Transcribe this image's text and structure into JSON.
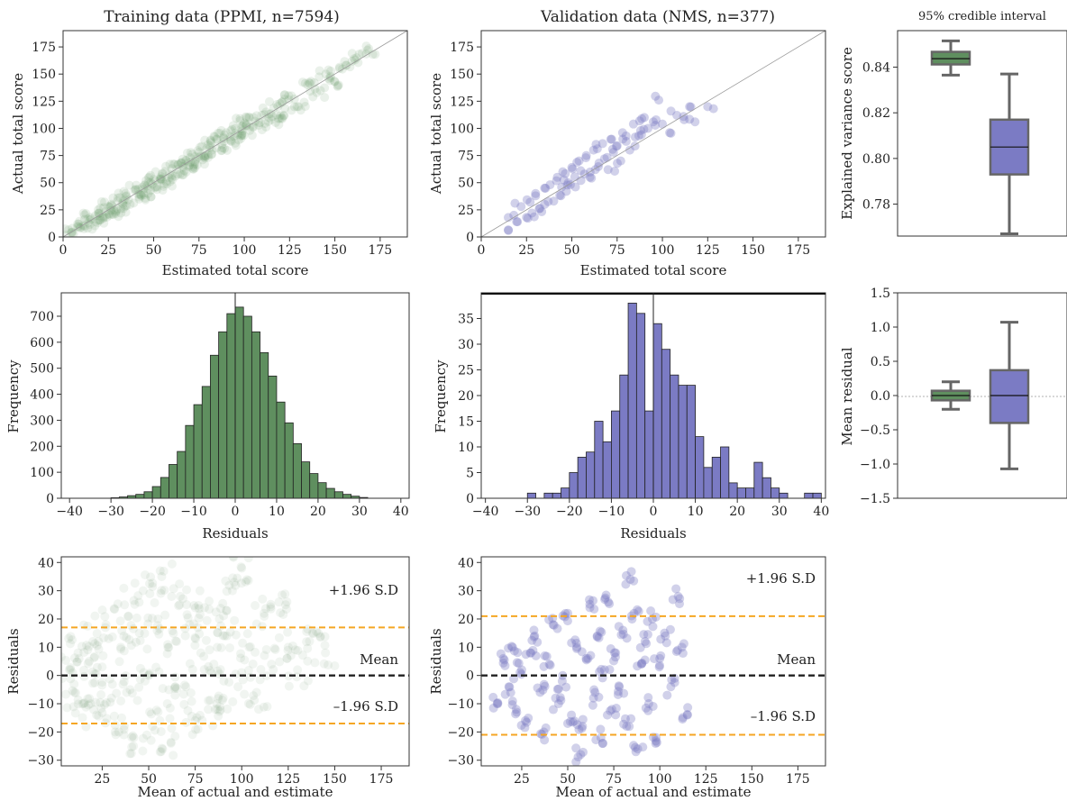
{
  "colors": {
    "train": "#5f8f5f",
    "valid": "#7b7bc4",
    "sd_line": "#f5a623",
    "mean_line": "#222222"
  },
  "chart_data": [
    {
      "id": "train-scatter",
      "type": "scatter",
      "title": "Training data (PPMI, n=7594)",
      "xlabel": "Estimated total score",
      "ylabel": "Actual total score",
      "xlim": [
        0,
        190
      ],
      "ylim": [
        0,
        190
      ],
      "xticks": [
        0,
        25,
        50,
        75,
        100,
        125,
        150,
        175
      ],
      "yticks": [
        0,
        25,
        50,
        75,
        100,
        125,
        150,
        175
      ],
      "reference_line": "identity y = x",
      "points": [
        [
          5,
          4
        ],
        [
          8,
          12
        ],
        [
          12,
          10
        ],
        [
          15,
          18
        ],
        [
          18,
          14
        ],
        [
          20,
          22
        ],
        [
          22,
          17
        ],
        [
          25,
          28
        ],
        [
          27,
          21
        ],
        [
          30,
          33
        ],
        [
          32,
          26
        ],
        [
          35,
          38
        ],
        [
          37,
          30
        ],
        [
          40,
          44
        ],
        [
          42,
          35
        ],
        [
          45,
          48
        ],
        [
          47,
          40
        ],
        [
          50,
          53
        ],
        [
          52,
          46
        ],
        [
          55,
          58
        ],
        [
          57,
          51
        ],
        [
          60,
          63
        ],
        [
          62,
          56
        ],
        [
          65,
          68
        ],
        [
          67,
          61
        ],
        [
          70,
          73
        ],
        [
          72,
          66
        ],
        [
          75,
          78
        ],
        [
          77,
          71
        ],
        [
          80,
          85
        ],
        [
          82,
          76
        ],
        [
          85,
          90
        ],
        [
          88,
          82
        ],
        [
          90,
          96
        ],
        [
          93,
          88
        ],
        [
          95,
          100
        ],
        [
          98,
          93
        ],
        [
          100,
          105
        ],
        [
          103,
          98
        ],
        [
          105,
          110
        ],
        [
          108,
          103
        ],
        [
          112,
          115
        ],
        [
          115,
          108
        ],
        [
          118,
          122
        ],
        [
          122,
          112
        ],
        [
          126,
          130
        ],
        [
          130,
          120
        ],
        [
          135,
          140
        ],
        [
          140,
          133
        ],
        [
          145,
          150
        ],
        [
          150,
          143
        ],
        [
          156,
          158
        ],
        [
          162,
          165
        ],
        [
          168,
          172
        ]
      ]
    },
    {
      "id": "valid-scatter",
      "type": "scatter",
      "title": "Validation data (NMS, n=377)",
      "xlabel": "Estimated total score",
      "ylabel": "Actual total score",
      "xlim": [
        0,
        190
      ],
      "ylim": [
        0,
        190
      ],
      "xticks": [
        0,
        25,
        50,
        75,
        100,
        125,
        150,
        175
      ],
      "yticks": [
        0,
        25,
        50,
        75,
        100,
        125,
        150,
        175
      ],
      "reference_line": "identity y = x",
      "points": [
        [
          15,
          6
        ],
        [
          18,
          20
        ],
        [
          20,
          14
        ],
        [
          22,
          28
        ],
        [
          25,
          18
        ],
        [
          27,
          32
        ],
        [
          28,
          22
        ],
        [
          30,
          40
        ],
        [
          32,
          26
        ],
        [
          35,
          45
        ],
        [
          35,
          30
        ],
        [
          38,
          48
        ],
        [
          40,
          33
        ],
        [
          42,
          55
        ],
        [
          44,
          38
        ],
        [
          45,
          60
        ],
        [
          47,
          42
        ],
        [
          48,
          50
        ],
        [
          50,
          64
        ],
        [
          52,
          46
        ],
        [
          54,
          70
        ],
        [
          55,
          52
        ],
        [
          57,
          58
        ],
        [
          58,
          75
        ],
        [
          60,
          55
        ],
        [
          62,
          80
        ],
        [
          63,
          62
        ],
        [
          65,
          68
        ],
        [
          67,
          86
        ],
        [
          68,
          72
        ],
        [
          70,
          62
        ],
        [
          72,
          90
        ],
        [
          73,
          78
        ],
        [
          75,
          84
        ],
        [
          77,
          70
        ],
        [
          78,
          96
        ],
        [
          80,
          88
        ],
        [
          82,
          80
        ],
        [
          84,
          104
        ],
        [
          85,
          92
        ],
        [
          88,
          98
        ],
        [
          90,
          110
        ],
        [
          92,
          100
        ],
        [
          95,
          106
        ],
        [
          98,
          126
        ],
        [
          100,
          104
        ],
        [
          104,
          96
        ],
        [
          108,
          112
        ],
        [
          112,
          108
        ],
        [
          115,
          120
        ],
        [
          118,
          106
        ],
        [
          125,
          120
        ]
      ]
    },
    {
      "id": "ev-box",
      "type": "box",
      "title": "95% credible interval",
      "ylabel": "Explained variance score",
      "ylim": [
        0.766,
        0.856
      ],
      "yticks": [
        0.78,
        0.8,
        0.82,
        0.84
      ],
      "boxes": [
        {
          "name": "train",
          "whisker_low": 0.8365,
          "q1": 0.8412,
          "median": 0.8437,
          "q3": 0.8467,
          "whisker_high": 0.8515
        },
        {
          "name": "valid",
          "whisker_low": 0.767,
          "q1": 0.793,
          "median": 0.805,
          "q3": 0.817,
          "whisker_high": 0.837
        }
      ]
    },
    {
      "id": "train-hist",
      "type": "bar",
      "xlabel": "Residuals",
      "ylabel": "Frequency",
      "xlim": [
        -42,
        42
      ],
      "ylim": [
        0,
        790
      ],
      "xticks": [
        -40,
        -30,
        -20,
        -10,
        0,
        10,
        20,
        30,
        40
      ],
      "yticks": [
        0,
        100,
        200,
        300,
        400,
        500,
        600,
        700
      ],
      "bin_width": 2,
      "bins_start": [
        -30,
        -28,
        -26,
        -24,
        -22,
        -20,
        -18,
        -16,
        -14,
        -12,
        -10,
        -8,
        -6,
        -4,
        -2,
        0,
        2,
        4,
        6,
        8,
        10,
        12,
        14,
        16,
        18,
        20,
        22,
        24,
        26,
        28,
        30
      ],
      "values": [
        2,
        5,
        10,
        15,
        25,
        45,
        80,
        130,
        180,
        280,
        360,
        430,
        550,
        640,
        710,
        735,
        700,
        640,
        560,
        470,
        370,
        290,
        210,
        140,
        95,
        60,
        38,
        25,
        15,
        8,
        3
      ]
    },
    {
      "id": "valid-hist",
      "type": "bar",
      "xlabel": "Residuals",
      "ylabel": "Frequency",
      "xlim": [
        -41,
        41
      ],
      "ylim": [
        0,
        40
      ],
      "xticks": [
        -40,
        -30,
        -20,
        -10,
        0,
        10,
        20,
        30,
        40
      ],
      "yticks": [
        0,
        5,
        10,
        15,
        20,
        25,
        30,
        35
      ],
      "bin_width": 2,
      "bins_start": [
        -30,
        -28,
        -26,
        -24,
        -22,
        -20,
        -18,
        -16,
        -14,
        -12,
        -10,
        -8,
        -6,
        -4,
        -2,
        0,
        2,
        4,
        6,
        8,
        10,
        12,
        14,
        16,
        18,
        20,
        22,
        24,
        26,
        28,
        30,
        32,
        34,
        36,
        38
      ],
      "values": [
        1,
        0,
        1,
        1,
        2,
        5,
        8,
        9,
        15,
        11,
        17,
        24,
        38,
        36,
        17,
        34,
        29,
        24,
        22,
        22,
        12,
        6,
        8,
        10,
        3,
        2,
        2,
        7,
        4,
        2,
        1,
        0,
        0,
        1,
        1
      ]
    },
    {
      "id": "mean-box",
      "type": "box",
      "ylabel": "Mean residual",
      "ylim": [
        -1.5,
        1.5
      ],
      "yticks": [
        -1.5,
        -1.0,
        -0.5,
        0.0,
        0.5,
        1.0,
        1.5
      ],
      "boxes": [
        {
          "name": "train",
          "whisker_low": -0.2,
          "q1": -0.07,
          "median": 0.0,
          "q3": 0.07,
          "whisker_high": 0.2
        },
        {
          "name": "valid",
          "whisker_low": -1.07,
          "q1": -0.4,
          "median": 0.0,
          "q3": 0.37,
          "whisker_high": 1.07
        }
      ]
    },
    {
      "id": "train-ba",
      "type": "scatter",
      "xlabel": "Mean of actual and estimate",
      "ylabel": "Residuals",
      "xlim": [
        3,
        190
      ],
      "ylim": [
        -32,
        42
      ],
      "xticks": [
        25,
        50,
        75,
        100,
        125,
        150,
        175
      ],
      "yticks": [
        -30,
        -20,
        -10,
        0,
        10,
        20,
        30,
        40
      ],
      "mean": 0,
      "upper_sd": 17,
      "lower_sd": -17,
      "mean_label": "Mean",
      "upper_label": "+1.96 S.D",
      "lower_label": "–1.96 S.D",
      "points": [
        [
          8,
          2
        ],
        [
          10,
          -6
        ],
        [
          12,
          8
        ],
        [
          15,
          -10
        ],
        [
          18,
          5
        ],
        [
          20,
          12
        ],
        [
          22,
          -14
        ],
        [
          25,
          3
        ],
        [
          27,
          18
        ],
        [
          30,
          -8
        ],
        [
          32,
          -20
        ],
        [
          35,
          10
        ],
        [
          37,
          25
        ],
        [
          40,
          -5
        ],
        [
          42,
          -22
        ],
        [
          45,
          15
        ],
        [
          47,
          30
        ],
        [
          50,
          0
        ],
        [
          52,
          -18
        ],
        [
          55,
          20
        ],
        [
          57,
          35
        ],
        [
          60,
          -10
        ],
        [
          62,
          -24
        ],
        [
          65,
          12
        ],
        [
          67,
          28
        ],
        [
          70,
          -4
        ],
        [
          72,
          18
        ],
        [
          75,
          -16
        ],
        [
          78,
          8
        ],
        [
          80,
          24
        ],
        [
          82,
          -12
        ],
        [
          85,
          4
        ],
        [
          88,
          20
        ],
        [
          90,
          -8
        ],
        [
          92,
          14
        ],
        [
          95,
          30
        ],
        [
          98,
          -4
        ],
        [
          100,
          38
        ],
        [
          104,
          10
        ],
        [
          108,
          -6
        ],
        [
          112,
          22
        ],
        [
          116,
          4
        ],
        [
          120,
          26
        ],
        [
          125,
          10
        ],
        [
          130,
          2
        ],
        [
          138,
          15
        ],
        [
          145,
          8
        ]
      ]
    },
    {
      "id": "valid-ba",
      "type": "scatter",
      "xlabel": "Mean of actual and estimate",
      "ylabel": "Residuals",
      "xlim": [
        3,
        190
      ],
      "ylim": [
        -32,
        42
      ],
      "xticks": [
        25,
        50,
        75,
        100,
        125,
        150,
        175
      ],
      "yticks": [
        -30,
        -20,
        -10,
        0,
        10,
        20,
        30,
        40
      ],
      "mean": 0,
      "upper_sd": 21,
      "lower_sd": -21,
      "mean_label": "Mean",
      "upper_label": "+1.96 S.D",
      "lower_label": "–1.96 S.D",
      "points": [
        [
          12,
          -10
        ],
        [
          15,
          6
        ],
        [
          18,
          -4
        ],
        [
          20,
          10
        ],
        [
          22,
          -12
        ],
        [
          25,
          2
        ],
        [
          27,
          -16
        ],
        [
          30,
          8
        ],
        [
          32,
          14
        ],
        [
          35,
          -6
        ],
        [
          37,
          -20
        ],
        [
          40,
          4
        ],
        [
          42,
          18
        ],
        [
          45,
          -10
        ],
        [
          47,
          -2
        ],
        [
          50,
          22
        ],
        [
          52,
          -14
        ],
        [
          55,
          10
        ],
        [
          57,
          -28
        ],
        [
          58,
          -18
        ],
        [
          60,
          6
        ],
        [
          62,
          24
        ],
        [
          64,
          -8
        ],
        [
          66,
          14
        ],
        [
          68,
          -22
        ],
        [
          70,
          2
        ],
        [
          72,
          26
        ],
        [
          74,
          -12
        ],
        [
          76,
          8
        ],
        [
          78,
          -4
        ],
        [
          80,
          16
        ],
        [
          82,
          -18
        ],
        [
          84,
          34
        ],
        [
          86,
          22
        ],
        [
          88,
          -26
        ],
        [
          90,
          4
        ],
        [
          92,
          12
        ],
        [
          94,
          -10
        ],
        [
          96,
          20
        ],
        [
          98,
          -22
        ],
        [
          100,
          6
        ],
        [
          103,
          14
        ],
        [
          106,
          -4
        ],
        [
          110,
          28
        ],
        [
          112,
          10
        ],
        [
          115,
          -14
        ]
      ]
    }
  ]
}
